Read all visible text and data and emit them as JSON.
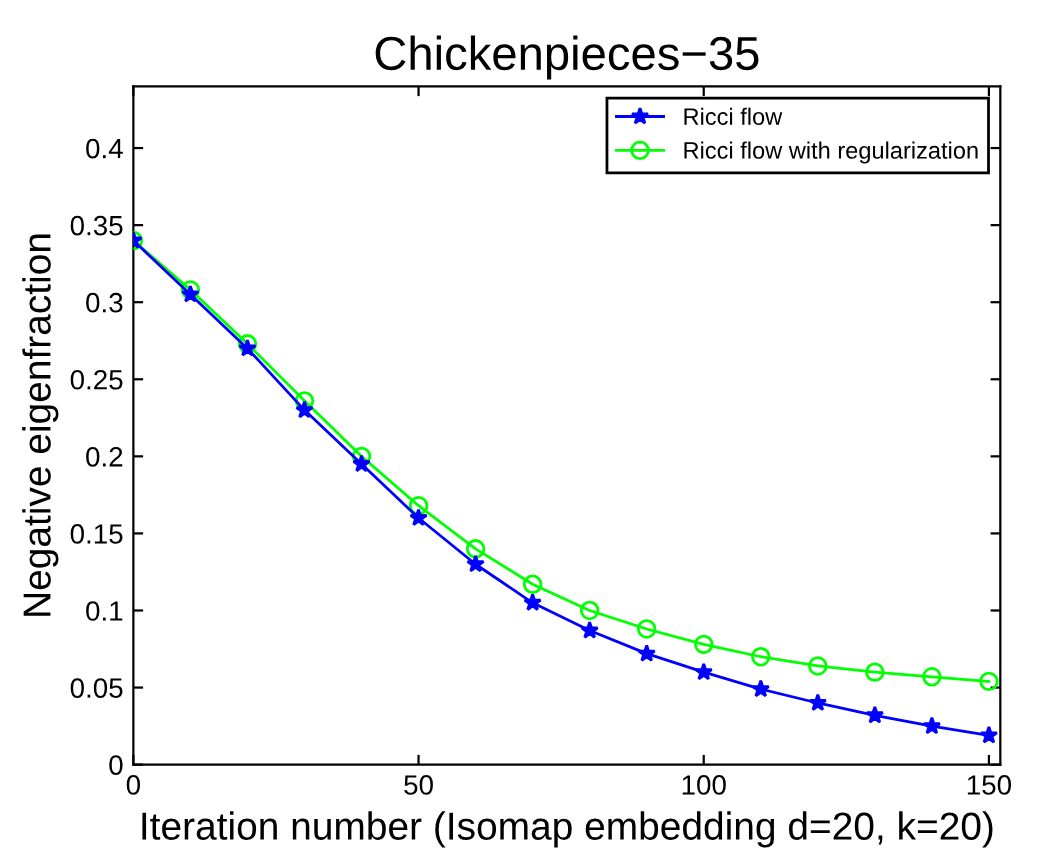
{
  "chart_data": {
    "type": "line",
    "title": "Chickenpieces−35",
    "xlabel": "Iteration number (Isomap embedding d=20, k=20)",
    "ylabel": "Negative eigenfraction",
    "x": [
      0,
      10,
      20,
      30,
      40,
      50,
      60,
      70,
      80,
      90,
      100,
      110,
      120,
      130,
      140,
      150
    ],
    "series": [
      {
        "name": "Ricci flow",
        "color": "#0000ff",
        "marker": "star",
        "values": [
          0.34,
          0.305,
          0.27,
          0.23,
          0.195,
          0.16,
          0.13,
          0.105,
          0.087,
          0.072,
          0.06,
          0.049,
          0.04,
          0.032,
          0.025,
          0.019
        ]
      },
      {
        "name": "Ricci flow with regularization",
        "color": "#00ff00",
        "marker": "circle",
        "values": [
          0.34,
          0.308,
          0.273,
          0.236,
          0.2,
          0.168,
          0.14,
          0.117,
          0.1,
          0.088,
          0.078,
          0.07,
          0.064,
          0.06,
          0.057,
          0.054
        ]
      }
    ],
    "xlim": [
      0,
      152
    ],
    "ylim": [
      0,
      0.44
    ],
    "xticks": [
      0,
      50,
      100,
      150
    ],
    "yticks": [
      0,
      0.05,
      0.1,
      0.15,
      0.2,
      0.25,
      0.3,
      0.35,
      0.4
    ],
    "grid": false,
    "legend": "top right",
    "line_style": "solid"
  }
}
